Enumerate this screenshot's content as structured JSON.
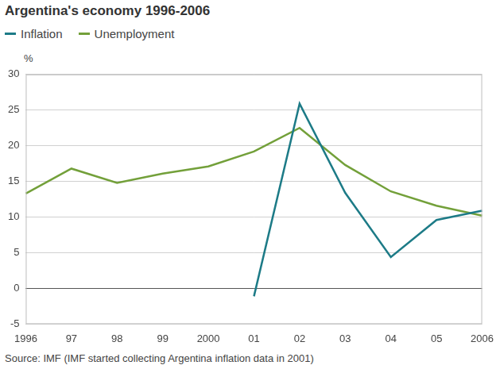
{
  "chart_data": {
    "type": "line",
    "title": "Argentina's economy 1996-2006",
    "y_label": "%",
    "source": "Source: IMF (IMF started collecting Argentina inflation data in 2001)",
    "categories": [
      "1996",
      "97",
      "98",
      "99",
      "2000",
      "01",
      "02",
      "03",
      "04",
      "05",
      "2006"
    ],
    "series": [
      {
        "name": "Inflation",
        "color": "#1d7b87",
        "values": [
          null,
          null,
          null,
          null,
          null,
          -1.1,
          25.9,
          13.4,
          4.4,
          9.6,
          10.9
        ]
      },
      {
        "name": "Unemployment",
        "color": "#73a03a",
        "values": [
          13.3,
          16.8,
          14.8,
          16.1,
          17.1,
          19.2,
          22.5,
          17.3,
          13.6,
          11.6,
          10.2
        ]
      }
    ],
    "ylim": [
      -5,
      30
    ],
    "yticks": [
      -5,
      0,
      5,
      10,
      15,
      20,
      25,
      30
    ],
    "grid": true,
    "legend": "top-left"
  }
}
